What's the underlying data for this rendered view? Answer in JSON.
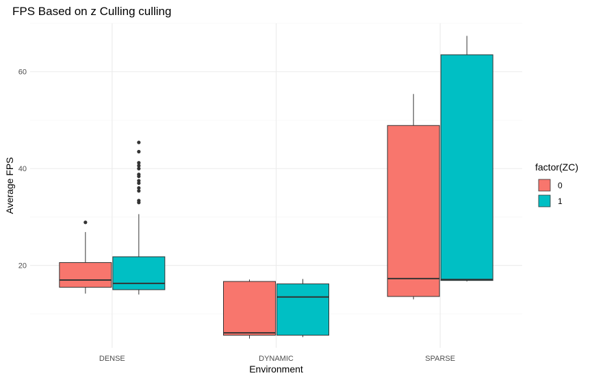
{
  "chart_data": {
    "type": "boxplot",
    "title": "FPS Based on z Culling culling",
    "xlabel": "Environment",
    "ylabel": "Average FPS",
    "ylim": [
      3,
      70
    ],
    "yticks": [
      20,
      40,
      60
    ],
    "categories": [
      "DENSE",
      "DYNAMIC",
      "SPARSE"
    ],
    "legend": {
      "title": "factor(ZC)",
      "position": "right"
    },
    "grid": true,
    "series": [
      {
        "name": "0",
        "color": "#F8766D",
        "boxes": [
          {
            "category": "DENSE",
            "min": 14.2,
            "q1": 15.5,
            "median": 17.0,
            "q3": 20.6,
            "max": 26.9,
            "outliers": [
              28.9
            ]
          },
          {
            "category": "DYNAMIC",
            "min": 4.9,
            "q1": 5.6,
            "median": 6.1,
            "q3": 16.7,
            "max": 17.1,
            "outliers": []
          },
          {
            "category": "SPARSE",
            "min": 13.0,
            "q1": 13.6,
            "median": 17.3,
            "q3": 48.9,
            "max": 55.4,
            "outliers": []
          }
        ]
      },
      {
        "name": "1",
        "color": "#00BFC4",
        "boxes": [
          {
            "category": "DENSE",
            "min": 14.0,
            "q1": 15.0,
            "median": 16.3,
            "q3": 21.8,
            "max": 30.6,
            "outliers": [
              33.0,
              33.4,
              35.4,
              36.0,
              37.0,
              37.5,
              38.4,
              38.8,
              40.0,
              40.6,
              41.2,
              43.5,
              45.4
            ]
          },
          {
            "category": "DYNAMIC",
            "min": 5.2,
            "q1": 5.6,
            "median": 13.5,
            "q3": 16.2,
            "max": 17.2,
            "outliers": []
          },
          {
            "category": "SPARSE",
            "min": 16.7,
            "q1": 16.9,
            "median": 17.1,
            "q3": 63.5,
            "max": 67.4,
            "outliers": []
          }
        ]
      }
    ]
  }
}
